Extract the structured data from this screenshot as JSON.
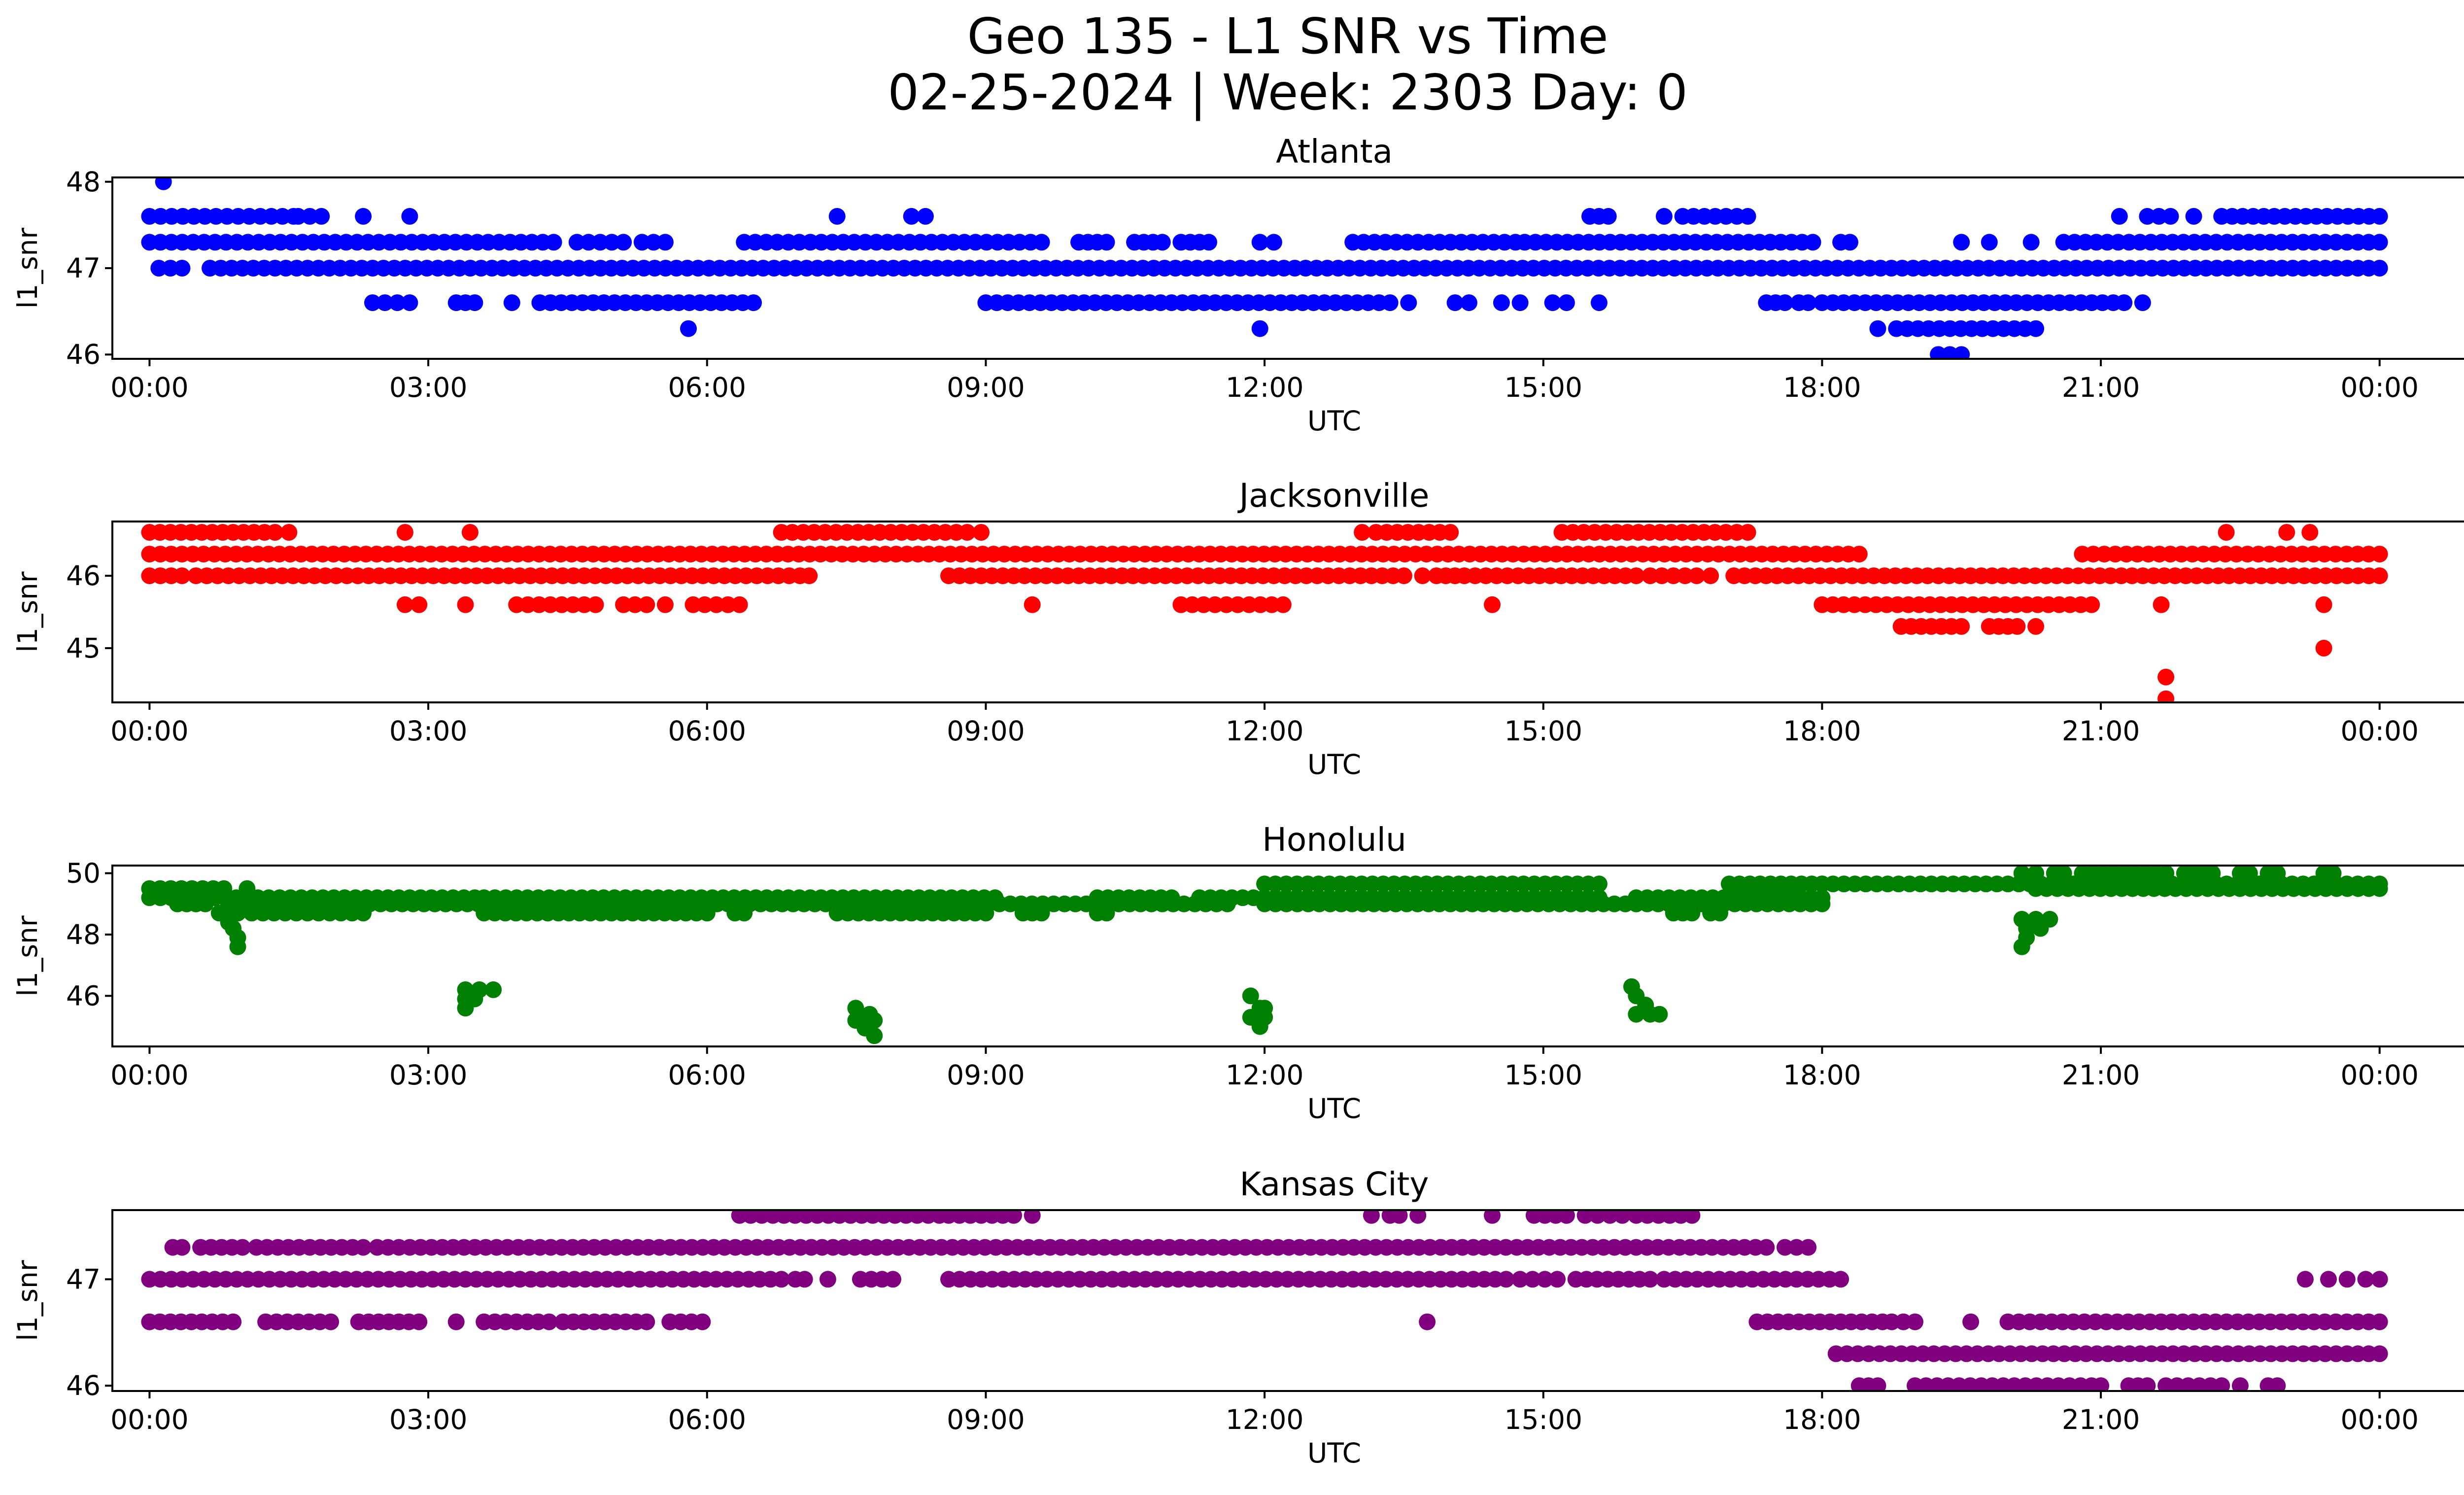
{
  "figure": {
    "title_line1": "Geo 135 - L1 SNR vs Time",
    "title_line2": "02-25-2024 | Week: 2303 Day: 0"
  },
  "chart_data": [
    {
      "type": "scatter",
      "title": "Atlanta",
      "xlabel": "UTC",
      "ylabel": "l1_snr",
      "color": "#0000ff",
      "x_unit": "hours",
      "xlim": [
        -0.4,
        25.9
      ],
      "ylim": [
        45.95,
        48.05
      ],
      "x_ticks": [
        0,
        3,
        6,
        9,
        12,
        15,
        18,
        21,
        24
      ],
      "x_tick_labels": [
        "00:00",
        "03:00",
        "06:00",
        "09:00",
        "12:00",
        "15:00",
        "18:00",
        "21:00",
        "00:00"
      ],
      "y_ticks": [
        46,
        47,
        48
      ],
      "y_tick_labels": [
        "46",
        "47",
        "48"
      ],
      "bands": [
        {
          "y": 47.6,
          "segments": [
            [
              0.0,
              1.55
            ],
            [
              1.6,
              1.85
            ],
            [
              2.3,
              2.35
            ],
            [
              2.8,
              2.85
            ],
            [
              7.4,
              7.45
            ],
            [
              8.2,
              8.35
            ],
            [
              15.5,
              15.7
            ],
            [
              16.3,
              16.35
            ],
            [
              16.5,
              17.2
            ],
            [
              21.2,
              21.25
            ],
            [
              21.5,
              21.75
            ],
            [
              22.0,
              22.05
            ],
            [
              22.3,
              24.0
            ]
          ]
        },
        {
          "y": 47.3,
          "segments": [
            [
              0.0,
              4.35
            ],
            [
              4.6,
              5.1
            ],
            [
              5.3,
              5.55
            ],
            [
              6.4,
              9.6
            ],
            [
              10.0,
              10.3
            ],
            [
              10.6,
              10.9
            ],
            [
              11.1,
              11.4
            ],
            [
              11.95,
              12.1
            ],
            [
              12.95,
              14.7
            ],
            [
              14.8,
              17.9
            ],
            [
              18.2,
              18.3
            ],
            [
              19.5,
              19.55
            ],
            [
              19.8,
              19.85
            ],
            [
              20.25,
              20.3
            ],
            [
              20.6,
              24.0
            ]
          ]
        },
        {
          "y": 47.0,
          "segments": [
            [
              0.1,
              0.35
            ],
            [
              0.65,
              24.0
            ]
          ]
        },
        {
          "y": 46.6,
          "segments": [
            [
              2.4,
              2.8
            ],
            [
              3.3,
              3.5
            ],
            [
              3.9,
              3.95
            ],
            [
              4.2,
              6.5
            ],
            [
              9.0,
              13.35
            ],
            [
              13.55,
              13.6
            ],
            [
              14.05,
              14.2
            ],
            [
              14.55,
              14.6
            ],
            [
              14.75,
              14.8
            ],
            [
              15.1,
              15.25
            ],
            [
              15.6,
              15.65
            ],
            [
              17.4,
              17.6
            ],
            [
              17.75,
              17.85
            ],
            [
              18.0,
              21.25
            ],
            [
              21.45,
              21.5
            ]
          ]
        },
        {
          "y": 46.3,
          "segments": [
            [
              5.8,
              5.85
            ],
            [
              11.95,
              12.0
            ],
            [
              18.6,
              18.65
            ],
            [
              18.8,
              20.3
            ]
          ]
        },
        {
          "y": 46.0,
          "segments": [
            [
              19.25,
              19.5
            ]
          ]
        }
      ],
      "points": [
        {
          "x": 0.15,
          "y": 48.0
        }
      ]
    },
    {
      "type": "scatter",
      "title": "Jacksonville",
      "xlabel": "UTC",
      "ylabel": "l1_snr",
      "color": "#ff0000",
      "x_unit": "hours",
      "xlim": [
        -0.4,
        25.9
      ],
      "ylim": [
        44.25,
        46.75
      ],
      "x_ticks": [
        0,
        3,
        6,
        9,
        12,
        15,
        18,
        21,
        24
      ],
      "x_tick_labels": [
        "00:00",
        "03:00",
        "06:00",
        "09:00",
        "12:00",
        "15:00",
        "18:00",
        "21:00",
        "00:00"
      ],
      "y_ticks": [
        45,
        46
      ],
      "y_tick_labels": [
        "45",
        "46"
      ],
      "bands": [
        {
          "y": 46.6,
          "segments": [
            [
              0.0,
              1.35
            ],
            [
              1.5,
              1.55
            ],
            [
              2.75,
              2.8
            ],
            [
              3.45,
              3.5
            ],
            [
              6.8,
              8.8
            ],
            [
              8.95,
              9.0
            ],
            [
              13.05,
              13.1
            ],
            [
              13.2,
              14.0
            ],
            [
              15.2,
              17.2
            ],
            [
              22.35,
              22.4
            ],
            [
              23.0,
              23.05
            ],
            [
              23.25,
              23.3
            ]
          ]
        },
        {
          "y": 46.3,
          "segments": [
            [
              0.0,
              18.4
            ],
            [
              20.8,
              24.0
            ]
          ]
        },
        {
          "y": 46.0,
          "segments": [
            [
              0.0,
              0.35
            ],
            [
              0.5,
              7.0
            ],
            [
              7.1,
              7.15
            ],
            [
              8.6,
              13.5
            ],
            [
              13.7,
              13.85
            ],
            [
              13.95,
              14.05
            ],
            [
              14.15,
              16.0
            ],
            [
              16.15,
              16.65
            ],
            [
              16.8,
              16.85
            ],
            [
              17.05,
              24.0
            ]
          ]
        },
        {
          "y": 45.6,
          "segments": [
            [
              2.75,
              2.9
            ],
            [
              3.4,
              3.45
            ],
            [
              3.95,
              4.8
            ],
            [
              5.1,
              5.35
            ],
            [
              5.55,
              5.6
            ],
            [
              5.85,
              6.35
            ],
            [
              9.5,
              9.55
            ],
            [
              11.1,
              12.2
            ],
            [
              14.45,
              14.5
            ],
            [
              18.0,
              20.9
            ],
            [
              21.65,
              21.7
            ],
            [
              23.4,
              23.45
            ]
          ]
        },
        {
          "y": 45.3,
          "segments": [
            [
              18.85,
              19.5
            ],
            [
              19.8,
              20.1
            ],
            [
              20.3,
              20.35
            ]
          ]
        }
      ],
      "points": [
        {
          "x": 23.4,
          "y": 45.0
        },
        {
          "x": 21.7,
          "y": 44.6
        },
        {
          "x": 21.7,
          "y": 44.3
        }
      ]
    },
    {
      "type": "scatter",
      "title": "Honolulu",
      "xlabel": "UTC",
      "ylabel": "l1_snr",
      "color": "#008000",
      "x_unit": "hours",
      "xlim": [
        -0.4,
        25.9
      ],
      "ylim": [
        44.35,
        50.25
      ],
      "x_ticks": [
        0,
        3,
        6,
        9,
        12,
        15,
        18,
        21,
        24
      ],
      "x_tick_labels": [
        "00:00",
        "03:00",
        "06:00",
        "09:00",
        "12:00",
        "15:00",
        "18:00",
        "21:00",
        "00:00"
      ],
      "y_ticks": [
        46,
        48,
        50
      ],
      "y_tick_labels": [
        "46",
        "48",
        "50"
      ],
      "bands": [
        {
          "y": 50.0,
          "segments": [
            [
              20.15,
              20.3
            ],
            [
              20.5,
              20.6
            ],
            [
              20.8,
              21.7
            ],
            [
              21.9,
              22.2
            ],
            [
              22.5,
              22.6
            ],
            [
              22.8,
              22.9
            ],
            [
              23.4,
              23.5
            ]
          ]
        },
        {
          "y": 49.65,
          "segments": [
            [
              12.0,
              15.6
            ],
            [
              17.0,
              18.0
            ],
            [
              18.0,
              24.0
            ]
          ]
        },
        {
          "y": 49.5,
          "segments": [
            [
              0.0,
              0.8
            ],
            [
              1.05,
              1.1
            ],
            [
              20.3,
              24.0
            ]
          ]
        },
        {
          "y": 49.2,
          "segments": [
            [
              0.0,
              3.5
            ],
            [
              3.6,
              9.1
            ],
            [
              10.2,
              11.0
            ],
            [
              11.3,
              15.6
            ],
            [
              16.0,
              18.0
            ]
          ]
        },
        {
          "y": 49.0,
          "segments": [
            [
              0.3,
              0.6
            ],
            [
              0.85,
              11.6
            ],
            [
              12.0,
              18.0
            ]
          ]
        },
        {
          "y": 48.7,
          "segments": [
            [
              0.75,
              0.95
            ],
            [
              1.1,
              2.3
            ],
            [
              3.6,
              6.0
            ],
            [
              6.3,
              6.4
            ],
            [
              7.4,
              9.0
            ],
            [
              9.4,
              9.6
            ],
            [
              10.2,
              10.3
            ],
            [
              16.4,
              16.6
            ],
            [
              16.8,
              16.9
            ]
          ]
        }
      ],
      "points": [
        {
          "x": 0.85,
          "y": 48.4
        },
        {
          "x": 0.9,
          "y": 48.2
        },
        {
          "x": 0.95,
          "y": 47.9
        },
        {
          "x": 0.95,
          "y": 47.6
        },
        {
          "x": 3.4,
          "y": 46.2
        },
        {
          "x": 3.55,
          "y": 46.2
        },
        {
          "x": 3.7,
          "y": 46.2
        },
        {
          "x": 3.4,
          "y": 45.9
        },
        {
          "x": 3.5,
          "y": 45.9
        },
        {
          "x": 3.4,
          "y": 45.6
        },
        {
          "x": 7.6,
          "y": 45.6
        },
        {
          "x": 7.75,
          "y": 45.4
        },
        {
          "x": 7.6,
          "y": 45.2
        },
        {
          "x": 7.8,
          "y": 45.2
        },
        {
          "x": 7.7,
          "y": 44.95
        },
        {
          "x": 7.8,
          "y": 44.7
        },
        {
          "x": 11.85,
          "y": 46.0
        },
        {
          "x": 11.95,
          "y": 45.6
        },
        {
          "x": 12.0,
          "y": 45.6
        },
        {
          "x": 11.85,
          "y": 45.3
        },
        {
          "x": 12.0,
          "y": 45.3
        },
        {
          "x": 11.95,
          "y": 45.0
        },
        {
          "x": 15.95,
          "y": 46.3
        },
        {
          "x": 16.0,
          "y": 46.0
        },
        {
          "x": 16.1,
          "y": 45.7
        },
        {
          "x": 16.0,
          "y": 45.4
        },
        {
          "x": 16.15,
          "y": 45.4
        },
        {
          "x": 16.25,
          "y": 45.4
        },
        {
          "x": 20.15,
          "y": 48.5
        },
        {
          "x": 20.3,
          "y": 48.5
        },
        {
          "x": 20.45,
          "y": 48.5
        },
        {
          "x": 20.2,
          "y": 48.2
        },
        {
          "x": 20.35,
          "y": 48.2
        },
        {
          "x": 20.2,
          "y": 47.9
        },
        {
          "x": 20.15,
          "y": 47.6
        }
      ]
    },
    {
      "type": "scatter",
      "title": "Kansas City",
      "xlabel": "UTC",
      "ylabel": "l1_snr",
      "color": "#800080",
      "x_unit": "hours",
      "xlim": [
        -0.4,
        25.9
      ],
      "ylim": [
        45.95,
        47.65
      ],
      "x_ticks": [
        0,
        3,
        6,
        9,
        12,
        15,
        18,
        21,
        24
      ],
      "x_tick_labels": [
        "00:00",
        "03:00",
        "06:00",
        "09:00",
        "12:00",
        "15:00",
        "18:00",
        "21:00",
        "00:00"
      ],
      "y_ticks": [
        46,
        47
      ],
      "y_tick_labels": [
        "46",
        "47"
      ],
      "bands": [
        {
          "y": 47.6,
          "segments": [
            [
              6.35,
              8.5
            ],
            [
              8.6,
              9.3
            ],
            [
              9.5,
              9.55
            ],
            [
              13.15,
              13.2
            ],
            [
              13.35,
              13.45
            ],
            [
              13.65,
              13.7
            ],
            [
              14.45,
              14.5
            ],
            [
              14.9,
              15.25
            ],
            [
              15.45,
              15.85
            ],
            [
              16.0,
              16.6
            ]
          ]
        },
        {
          "y": 47.3,
          "segments": [
            [
              0.25,
              0.35
            ],
            [
              0.55,
              1.0
            ],
            [
              1.15,
              2.3
            ],
            [
              2.45,
              17.4
            ],
            [
              17.6,
              17.85
            ]
          ]
        },
        {
          "y": 47.0,
          "segments": [
            [
              0.0,
              6.8
            ],
            [
              6.95,
              7.05
            ],
            [
              7.3,
              7.35
            ],
            [
              7.65,
              8.0
            ],
            [
              8.6,
              14.6
            ],
            [
              14.75,
              15.15
            ],
            [
              15.35,
              16.15
            ],
            [
              16.3,
              18.2
            ],
            [
              23.2,
              23.25
            ],
            [
              23.45,
              23.5
            ],
            [
              23.65,
              23.7
            ],
            [
              23.85,
              24.0
            ]
          ]
        },
        {
          "y": 46.6,
          "segments": [
            [
              0.0,
              0.9
            ],
            [
              1.25,
              1.95
            ],
            [
              2.25,
              2.9
            ],
            [
              3.3,
              3.35
            ],
            [
              3.6,
              4.3
            ],
            [
              4.45,
              5.35
            ],
            [
              5.6,
              5.95
            ],
            [
              13.75,
              13.8
            ],
            [
              17.3,
              18.65
            ],
            [
              18.75,
              19.0
            ],
            [
              19.6,
              19.65
            ],
            [
              20.0,
              24.0
            ]
          ]
        },
        {
          "y": 46.3,
          "segments": [
            [
              18.15,
              24.0
            ]
          ]
        },
        {
          "y": 46.0,
          "segments": [
            [
              18.4,
              18.6
            ],
            [
              19.0,
              20.9
            ],
            [
              21.0,
              21.05
            ],
            [
              21.3,
              21.5
            ],
            [
              21.7,
              22.3
            ],
            [
              22.5,
              22.55
            ],
            [
              22.8,
              22.9
            ]
          ]
        }
      ],
      "points": []
    }
  ]
}
